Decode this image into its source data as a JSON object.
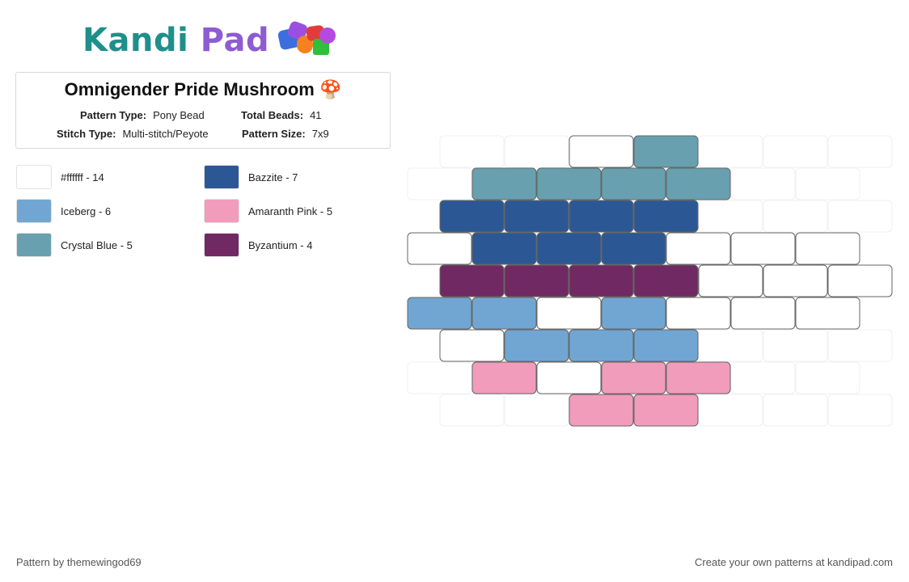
{
  "logo": {
    "part1": "Kandi",
    "part2": "Pad"
  },
  "pattern": {
    "title": "Omnigender Pride Mushroom 🍄",
    "type_label": "Pattern Type:",
    "type_value": "Pony Bead",
    "beads_label": "Total Beads:",
    "beads_value": "41",
    "stitch_label": "Stitch Type:",
    "stitch_value": "Multi-stitch/Peyote",
    "size_label": "Pattern Size:",
    "size_value": "7x9"
  },
  "legend": [
    {
      "label": "#ffffff - 14",
      "color": "#ffffff"
    },
    {
      "label": "Iceberg - 6",
      "color": "#71a6d2"
    },
    {
      "label": "Crystal Blue - 5",
      "color": "#68a0b0"
    },
    {
      "label": "Bazzite - 7",
      "color": "#2c5795"
    },
    {
      "label": "Amaranth Pink - 5",
      "color": "#f19cbb"
    },
    {
      "label": "Byzantium - 4",
      "color": "#702963"
    }
  ],
  "bead_grid": {
    "colors": {
      "W": "#ffffff",
      "I": "#71a6d2",
      "C": "#68a0b0",
      "B": "#2c5795",
      "P": "#f19cbb",
      "Z": "#702963"
    },
    "rows": [
      [
        "",
        "",
        "W",
        "C",
        "",
        "",
        ""
      ],
      [
        "",
        "C",
        "C",
        "C",
        "C",
        "",
        ""
      ],
      [
        "B",
        "B",
        "B",
        "B",
        "",
        "",
        ""
      ],
      [
        "W",
        "B",
        "B",
        "B",
        "W",
        "W",
        "W"
      ],
      [
        "Z",
        "Z",
        "Z",
        "Z",
        "W",
        "W",
        "W"
      ],
      [
        "I",
        "I",
        "W",
        "I",
        "W",
        "W",
        "W"
      ],
      [
        "W",
        "I",
        "I",
        "I",
        "",
        "",
        ""
      ],
      [
        "",
        "P",
        "W",
        "P",
        "P",
        "",
        ""
      ],
      [
        "",
        "",
        "P",
        "P",
        "",
        "",
        ""
      ]
    ]
  },
  "footer": {
    "left": "Pattern by themewingod69",
    "right": "Create your own patterns at kandipad.com"
  }
}
